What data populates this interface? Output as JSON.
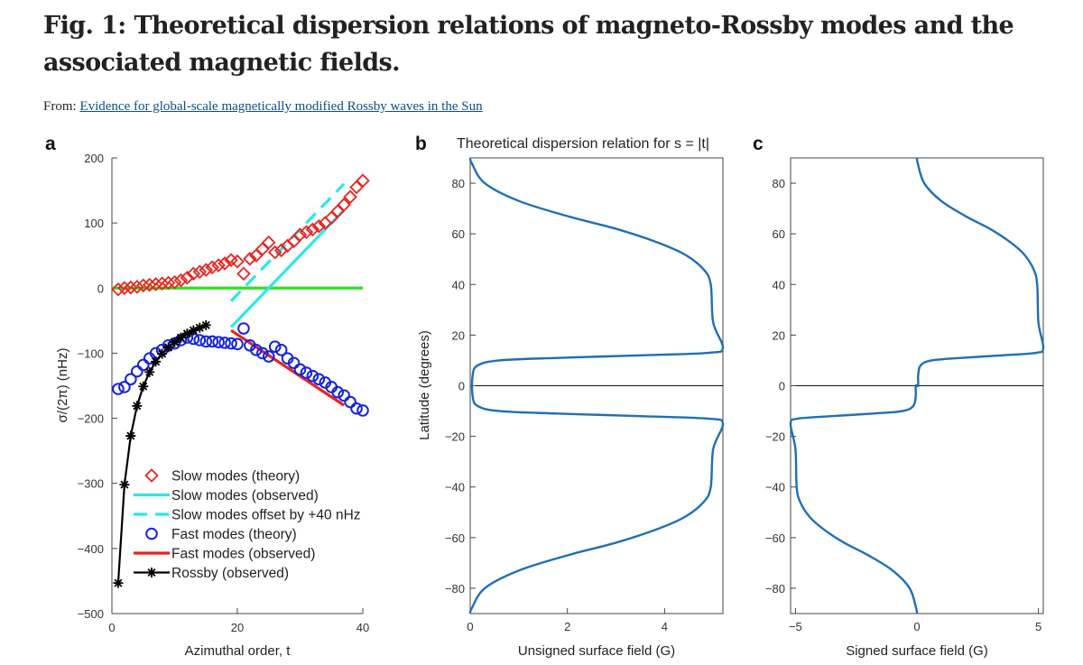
{
  "header": {
    "title": "Fig. 1: Theoretical dispersion relations of magneto-Rossby modes and the associated magnetic fields.",
    "from_label": "From:",
    "from_link": "Evidence for global-scale magnetically modified Rossby waves in the Sun"
  },
  "chart_data": [
    {
      "panel": "a",
      "type": "scatter",
      "xlabel": "Azimuthal order, t",
      "ylabel": "σ/(2π) (nHz)",
      "xlim": [
        0,
        40
      ],
      "ylim": [
        -500,
        200
      ],
      "xticks": [
        "0",
        "20",
        "40"
      ],
      "yticks": [
        "200",
        "100",
        "0",
        "−100",
        "−200",
        "−300",
        "−400",
        "−500"
      ],
      "legend_position": "lower-left",
      "series": [
        {
          "name": "Slow modes (theory)",
          "color": "#e8231f",
          "marker": "diamond",
          "x": [
            1,
            2,
            3,
            4,
            5,
            6,
            7,
            8,
            9,
            10,
            11,
            12,
            13,
            14,
            15,
            16,
            17,
            18,
            19,
            20,
            21,
            22,
            23,
            24,
            25,
            26,
            27,
            28,
            29,
            30,
            31,
            32,
            33,
            34,
            35,
            36,
            37,
            38,
            39,
            40
          ],
          "y": [
            -2,
            0,
            1,
            2,
            4,
            5,
            6,
            7,
            8,
            9,
            12,
            16,
            22,
            25,
            28,
            32,
            35,
            38,
            43,
            41,
            22,
            45,
            50,
            60,
            70,
            55,
            58,
            65,
            72,
            82,
            86,
            90,
            95,
            100,
            108,
            118,
            128,
            140,
            155,
            165
          ]
        },
        {
          "name": "Slow modes (observed)",
          "color": "#2ce6ec",
          "style": "solid",
          "x": [
            19,
            37
          ],
          "y": [
            -60,
            120
          ]
        },
        {
          "name": "Slow modes offset by +40 nHz",
          "color": "#2ce6ec",
          "style": "dashed",
          "x": [
            19,
            37
          ],
          "y": [
            -20,
            160
          ]
        },
        {
          "name": "Fast modes (theory)",
          "color": "#1524d8",
          "marker": "circle",
          "x": [
            1,
            2,
            3,
            4,
            5,
            6,
            7,
            8,
            9,
            10,
            11,
            12,
            13,
            14,
            15,
            16,
            17,
            18,
            19,
            20,
            21,
            22,
            23,
            24,
            25,
            26,
            27,
            28,
            29,
            30,
            31,
            32,
            33,
            34,
            35,
            36,
            37,
            38,
            39,
            40
          ],
          "y": [
            -155,
            -152,
            -140,
            -128,
            -118,
            -108,
            -100,
            -95,
            -88,
            -85,
            -80,
            -76,
            -78,
            -80,
            -82,
            -82,
            -83,
            -84,
            -85,
            -86,
            -62,
            -88,
            -95,
            -100,
            -105,
            -90,
            -95,
            -108,
            -115,
            -125,
            -130,
            -135,
            -140,
            -145,
            -152,
            -160,
            -165,
            -175,
            -185,
            -188
          ]
        },
        {
          "name": "Fast modes (observed)",
          "color": "#e8231f",
          "style": "solid",
          "x": [
            19,
            37
          ],
          "y": [
            -65,
            -180
          ]
        },
        {
          "name": "Rossby (observed)",
          "color": "#000000",
          "marker": "asterisk",
          "x": [
            1,
            2,
            3,
            4,
            5,
            6,
            7,
            8,
            9,
            10,
            11,
            12,
            13,
            14,
            15
          ],
          "y": [
            -453,
            -302,
            -227,
            -181,
            -151,
            -129,
            -113,
            -101,
            -91,
            -83,
            -76,
            -70,
            -65,
            -61,
            -57
          ]
        },
        {
          "name": "",
          "color": "#33dd22",
          "style": "solid",
          "x": [
            0,
            40
          ],
          "y": [
            0,
            0
          ]
        }
      ]
    },
    {
      "panel": "b",
      "type": "line",
      "title": "Theoretical dispersion relation for s = |t|",
      "xlabel": "Unsigned surface field (G)",
      "ylabel": "Latitude (degrees)",
      "xlim": [
        0,
        5.2
      ],
      "ylim": [
        -90,
        90
      ],
      "xticks": [
        "0",
        "2",
        "4"
      ],
      "yticks": [
        "80",
        "60",
        "40",
        "20",
        "0",
        "−20",
        "−40",
        "−60",
        "−80"
      ],
      "color": "#1f6fb5",
      "x": [
        0,
        0.03,
        0.3,
        1.0,
        2.0,
        3.0,
        3.8,
        4.4,
        4.8,
        4.95,
        5.0,
        5.2,
        4.9,
        3.5,
        1.8,
        0.6,
        0.15,
        0.05,
        0.05,
        0.15,
        0.6,
        1.8,
        3.5,
        4.9,
        5.2,
        5.0,
        4.95,
        4.8,
        4.4,
        3.8,
        3.0,
        2.0,
        1.0,
        0.3,
        0.03,
        0
      ],
      "y": [
        90,
        88,
        80,
        73,
        67,
        62,
        57,
        52,
        46,
        40,
        25,
        15,
        13,
        12,
        11,
        10,
        8,
        4,
        -4,
        -8,
        -10,
        -11,
        -12,
        -13,
        -15,
        -25,
        -40,
        -46,
        -52,
        -57,
        -62,
        -67,
        -73,
        -80,
        -88,
        -90
      ]
    },
    {
      "panel": "c",
      "type": "line",
      "xlabel": "Signed surface field (G)",
      "xlim": [
        -5.2,
        5.2
      ],
      "ylim": [
        -90,
        90
      ],
      "xticks": [
        "−5",
        "0",
        "5"
      ],
      "yticks": [
        "80",
        "60",
        "40",
        "20",
        "0",
        "−20",
        "−40",
        "−60",
        "−80"
      ],
      "color": "#1f6fb5",
      "x": [
        0,
        0.03,
        0.3,
        1.0,
        2.0,
        3.0,
        3.8,
        4.4,
        4.8,
        4.95,
        5.0,
        5.2,
        4.9,
        3.5,
        1.8,
        0.6,
        0.15,
        0.05,
        0.05,
        -0.05,
        -0.05,
        -0.15,
        -0.6,
        -1.8,
        -3.5,
        -4.9,
        -5.2,
        -5.0,
        -4.95,
        -4.8,
        -4.4,
        -3.8,
        -3.0,
        -2.0,
        -1.0,
        -0.3,
        -0.03,
        0
      ],
      "y": [
        90,
        88,
        80,
        73,
        67,
        62,
        57,
        52,
        46,
        40,
        25,
        15,
        13,
        12,
        11,
        10,
        8,
        4,
        0,
        0,
        -4,
        -8,
        -10,
        -11,
        -12,
        -13,
        -15,
        -25,
        -40,
        -46,
        -52,
        -57,
        -62,
        -67,
        -73,
        -80,
        -88,
        -90
      ]
    }
  ]
}
